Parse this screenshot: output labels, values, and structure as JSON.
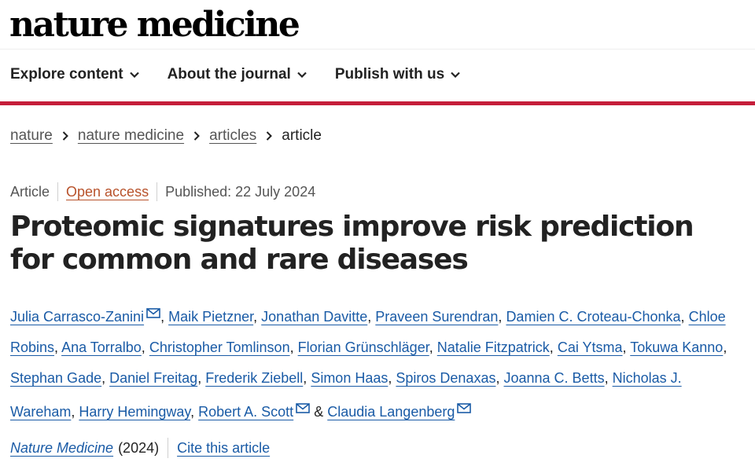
{
  "header": {
    "logo": "nature medicine"
  },
  "nav": {
    "items": [
      {
        "label": "Explore content",
        "icon": "chevron-down-icon"
      },
      {
        "label": "About the journal",
        "icon": "chevron-down-icon"
      },
      {
        "label": "Publish with us",
        "icon": "chevron-down-icon"
      }
    ]
  },
  "breadcrumb": {
    "items": [
      "nature",
      "nature medicine",
      "articles",
      "article"
    ]
  },
  "article": {
    "type": "Article",
    "access": "Open access",
    "published": "Published: 22 July 2024",
    "title": "Proteomic signatures improve risk prediction for common and rare diseases",
    "authors": [
      {
        "name": "Julia Carrasco-Zanini",
        "email": true
      },
      {
        "name": "Maik Pietzner"
      },
      {
        "name": "Jonathan Davitte"
      },
      {
        "name": "Praveen Surendran"
      },
      {
        "name": "Damien C. Croteau-Chonka"
      },
      {
        "name": "Chloe Robins"
      },
      {
        "name": "Ana Torralbo"
      },
      {
        "name": "Christopher Tomlinson"
      },
      {
        "name": "Florian Grünschläger"
      },
      {
        "name": "Natalie Fitzpatrick"
      },
      {
        "name": "Cai Ytsma"
      },
      {
        "name": "Tokuwa Kanno"
      },
      {
        "name": "Stephan Gade"
      },
      {
        "name": "Daniel Freitag"
      },
      {
        "name": "Frederik Ziebell"
      },
      {
        "name": "Simon Haas"
      },
      {
        "name": "Spiros Denaxas"
      },
      {
        "name": "Joanna C. Betts"
      },
      {
        "name": "Nicholas J. Wareham"
      },
      {
        "name": "Harry Hemingway"
      },
      {
        "name": "Robert A. Scott",
        "email": true
      },
      {
        "name": "Claudia Langenberg",
        "email": true
      }
    ],
    "separators": {
      "comma": ",",
      "and": "&"
    },
    "journal": "Nature Medicine",
    "year": "(2024)",
    "cite_label": "Cite this article"
  },
  "colors": {
    "accent_red": "#c51e3a",
    "link_blue": "#1a5ba6",
    "open_access": "#b8522b"
  }
}
